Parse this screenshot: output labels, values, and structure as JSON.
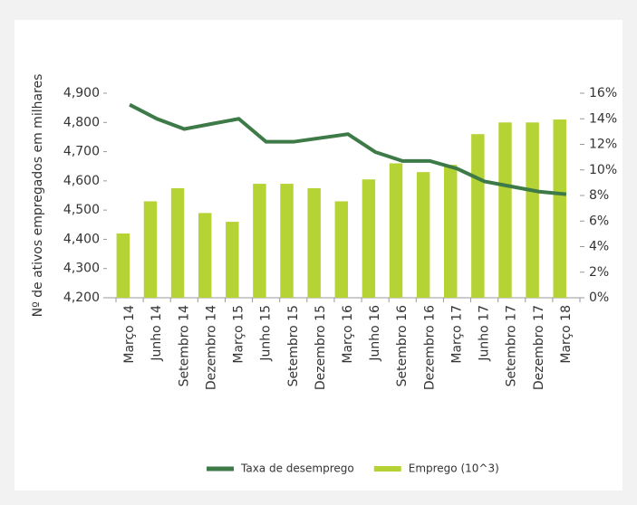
{
  "chart_data": {
    "type": "bar-line",
    "y_axis_label": "Nº de ativos empregados em milhares",
    "categories": [
      "Março 14",
      "Junho 14",
      "Setembro 14",
      "Dezembro 14",
      "Março 15",
      "Junho 15",
      "Setembro 15",
      "Dezembro 15",
      "Março 16",
      "Junho 16",
      "Setembro 16",
      "Dezembro 16",
      "Março 17",
      "Junho 17",
      "Setembro 17",
      "Dezembro 17",
      "Março 18"
    ],
    "series": [
      {
        "name": "Taxa de desemprego",
        "color": "#3d7a47",
        "type": "line",
        "axis": "y2",
        "values": [
          15.1,
          14.0,
          13.2,
          13.6,
          14.0,
          12.2,
          12.2,
          12.5,
          12.8,
          11.4,
          10.7,
          10.7,
          10.1,
          9.1,
          8.7,
          8.3,
          8.1
        ]
      },
      {
        "name": "Emprego (10^3)",
        "color": "#b5d334",
        "type": "bar",
        "axis": "y",
        "values": [
          4420,
          4530,
          4575,
          4490,
          4460,
          4590,
          4590,
          4575,
          4530,
          4605,
          4660,
          4630,
          4655,
          4760,
          4800,
          4800,
          4810
        ]
      }
    ],
    "ylim": [
      4200,
      4900
    ],
    "yticks": [
      {
        "value": 4200,
        "label": "4,200"
      },
      {
        "value": 4300,
        "label": "4,300"
      },
      {
        "value": 4400,
        "label": "4,400"
      },
      {
        "value": 4500,
        "label": "4,500"
      },
      {
        "value": 4600,
        "label": "4,600"
      },
      {
        "value": 4700,
        "label": "4,700"
      },
      {
        "value": 4800,
        "label": "4,800"
      },
      {
        "value": 4900,
        "label": "4,900"
      }
    ],
    "y2lim": [
      0,
      16
    ],
    "y2ticks": [
      {
        "value": 0,
        "label": "0%"
      },
      {
        "value": 2,
        "label": "2%"
      },
      {
        "value": 4,
        "label": "4%"
      },
      {
        "value": 6,
        "label": "6%"
      },
      {
        "value": 8,
        "label": "8%"
      },
      {
        "value": 10,
        "label": "10%"
      },
      {
        "value": 12,
        "label": "12%"
      },
      {
        "value": 14,
        "label": "14%"
      },
      {
        "value": 16,
        "label": "16%"
      }
    ],
    "legend": "bottom"
  }
}
